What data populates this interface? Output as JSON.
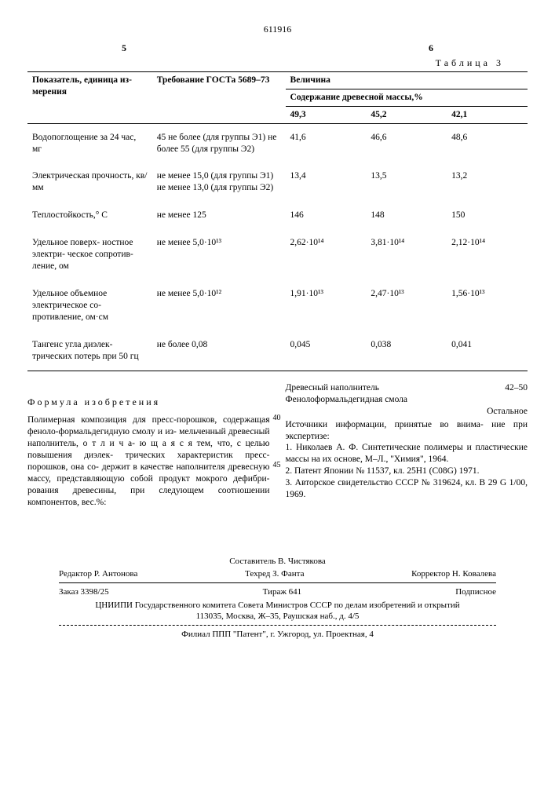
{
  "docnum": "611916",
  "colLeft": "5",
  "colRight": "6",
  "tableTitle": "Таблица 3",
  "header": {
    "param": "Показатель, единица из-\nмерения",
    "req": "Требование ГОСТа 5689–73",
    "val": "Величина",
    "sub": "Содержание древесной массы,%",
    "c1": "49,3",
    "c2": "45,2",
    "c3": "42,1"
  },
  "rows": [
    {
      "param": "Водопоглощение за 24 час, мг",
      "req": "45 не более (для группы Э1) не более 55 (для группы Э2)",
      "v1": "41,6",
      "v2": "46,6",
      "v3": "48,6"
    },
    {
      "param": "Электрическая прочность, кв/мм",
      "req": "не менее 15,0 (для группы Э1) не менее 13,0 (для группы Э2)",
      "v1": "13,4",
      "v2": "13,5",
      "v3": "13,2"
    },
    {
      "param": "Теплостойкость,° С",
      "req": "не менее 125",
      "v1": "146",
      "v2": "148",
      "v3": "150"
    },
    {
      "param": "Удельное поверх-\nностное электри-\nческое сопротив-\nление, ом",
      "req": "не менее 5,0·10¹³",
      "v1": "2,62·10¹⁴",
      "v2": "3,81·10¹⁴",
      "v3": "2,12·10¹⁴"
    },
    {
      "param": "Удельное объемное электрическое со-\nпротивление, ом·см",
      "req": "не менее 5,0·10¹²",
      "v1": "1,91·10¹³",
      "v2": "2,47·10¹³",
      "v3": "1,56·10¹³"
    },
    {
      "param": "Тангенс угла диэлек-\nтрических потерь при 50 гц",
      "req": "не более 0,08",
      "v1": "0,045",
      "v2": "0,038",
      "v3": "0,041"
    }
  ],
  "formulaTitle": "Формула изобретения",
  "leftCol": "Полимерная композиция для пресс-порошков, содержащая феноло-формальдегидную смолу и из-\nмельченный древесный наполнитель, о т л и ч а-\nю щ а я с я тем, что, с целью повышения диэлек-\nтрических характеристик пресс-порошков, она со-\nдержит в качестве наполнителя древесную массу, представляющую собой продукт мокрого дефибри-\nрования древесины, при следующем соотношении компонентов, вес.%:",
  "rightCol": {
    "line1a": "Древесный наполнитель",
    "line1b": "42–50",
    "line2": "Фенолоформальдегидная смола",
    "line2b": "Остальное",
    "src": "Источники информации, принятые во внима-\nние при экспертизе:",
    "ref1": "1. Николаев А. Ф. Синтетические полимеры и пластические массы на их основе, М–Л., \"Химия\", 1964.",
    "ref2": "2. Патент Японии № 11537, кл. 25H1 (C08G) 1971.",
    "ref3": "3. Авторское свидетельство СССР № 319624, кл. В 29 G 1/00, 1969."
  },
  "lineNums": {
    "a": "40",
    "b": "45"
  },
  "footer": {
    "compiler": "Составитель В. Чистякова",
    "editor": "Редактор Р. Антонова",
    "tech": "Техред З. Фанта",
    "corr": "Корректор Н. Ковалева",
    "order": "Заказ 3398/25",
    "tiraz": "Тираж 641",
    "sub": "Подписное",
    "org": "ЦНИИПИ Государственного комитета Совета Министров СССР по делам изобретений и открытий",
    "addr": "113035, Москва, Ж–35, Раушская наб., д. 4/5",
    "branch": "Филиал ППП \"Патент\", г. Ужгород, ул. Проектная, 4"
  }
}
